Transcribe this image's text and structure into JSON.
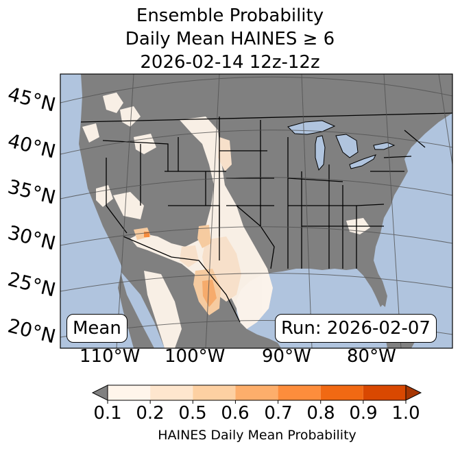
{
  "title": {
    "line1": "Ensemble Probability",
    "line2": "Daily Mean HAINES ≥ 6",
    "line3": "2026-02-14 12z-12z"
  },
  "labels": {
    "left_box": "Mean",
    "right_box": "Run: 2026-02-07"
  },
  "latitude_labels": [
    "45°N",
    "40°N",
    "35°N",
    "30°N",
    "25°N",
    "20°N"
  ],
  "longitude_labels": [
    "110°W",
    "100°W",
    "90°W",
    "80°W"
  ],
  "colorbar": {
    "ticks": [
      "0.1",
      "0.2",
      "0.5",
      "0.6",
      "0.7",
      "0.8",
      "0.9",
      "1.0"
    ],
    "colors": [
      "#fff5eb",
      "#fee6ce",
      "#fdd0a2",
      "#fdae6b",
      "#fd8d3c",
      "#f16913",
      "#d94801",
      "#a63603"
    ],
    "under_color": "#808080",
    "label": "HAINES Daily Mean Probability"
  },
  "map_colors": {
    "ocean": "#b0c4de",
    "land": "#808080",
    "lakes": "#b0c4de"
  }
}
